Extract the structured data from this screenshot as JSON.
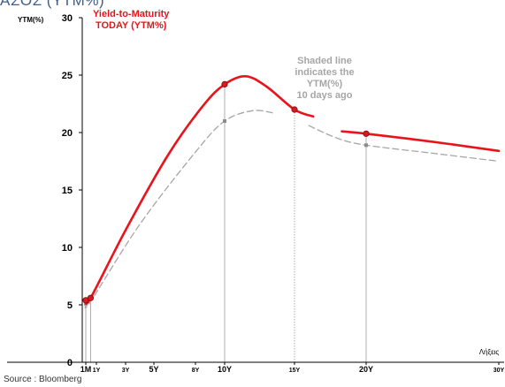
{
  "page_title": "ΑΣΟΣ (YTM%)",
  "source": "Source : Bloomberg",
  "legend": {
    "today_line1": "Yield-to-Maturity",
    "today_line2": "TODAY     (YTM%)"
  },
  "annotation": [
    "Shaded line",
    "indicates the",
    "YTM(%)",
    "10 days ago"
  ],
  "colors": {
    "today": "#e8141b",
    "ago": "#a6a6a6",
    "axis": "#000000",
    "drop": "#9a9a9a"
  },
  "chart_data": {
    "type": "line",
    "title": "",
    "ylabel": "YTM(%)",
    "xlabel": "Λήξεις",
    "ylim": [
      0,
      30
    ],
    "y_ticks": [
      "0",
      "5",
      "10",
      "15",
      "20",
      "25",
      "30"
    ],
    "x_ticks": [
      {
        "label": "1M",
        "t": 0.08,
        "bold": true
      },
      {
        "label": "1Y",
        "t": 1,
        "bold": false
      },
      {
        "label": "3Y",
        "t": 3,
        "bold": false
      },
      {
        "label": "5Y",
        "t": 5,
        "bold": true
      },
      {
        "label": "8Y",
        "t": 8,
        "bold": false
      },
      {
        "label": "10Y",
        "t": 10,
        "bold": true
      },
      {
        "label": "15Y",
        "t": 15,
        "bold": false
      },
      {
        "label": "20Y",
        "t": 20,
        "bold": true
      },
      {
        "label": "30Y",
        "t": 30,
        "bold": false
      }
    ],
    "grid": false,
    "series": [
      {
        "name": "Yield-to-Maturity TODAY (YTM%)",
        "role": "today",
        "style": "solid",
        "markers": [
          {
            "x": 0.08,
            "y": 5.4
          },
          {
            "x": 0.5,
            "y": 5.6
          },
          {
            "x": 10,
            "y": 24.2
          },
          {
            "x": 15,
            "y": 22.0
          },
          {
            "x": 20,
            "y": 19.9
          }
        ],
        "curve": [
          {
            "x": 0.08,
            "y": 5.4
          },
          {
            "x": 0.5,
            "y": 5.6
          },
          {
            "x": 3,
            "y": 11.5
          },
          {
            "x": 6,
            "y": 18.0
          },
          {
            "x": 8.5,
            "y": 22.3
          },
          {
            "x": 10,
            "y": 24.2
          },
          {
            "x": 11.5,
            "y": 24.9
          },
          {
            "x": 13,
            "y": 24.0
          },
          {
            "x": 15,
            "y": 22.0
          },
          {
            "x": 16.3,
            "y": 21.4
          }
        ],
        "curve2": [
          {
            "x": 18.3,
            "y": 20.1
          },
          {
            "x": 20,
            "y": 19.9
          },
          {
            "x": 25,
            "y": 19.2
          },
          {
            "x": 30,
            "y": 18.4
          }
        ]
      },
      {
        "name": "YTM(%) 10 days ago",
        "role": "ago",
        "style": "dashed",
        "markers": [
          {
            "x": 0.08,
            "y": 5.1
          },
          {
            "x": 10,
            "y": 21.0
          },
          {
            "x": 20,
            "y": 18.9
          }
        ],
        "curve": [
          {
            "x": 0.08,
            "y": 5.1
          },
          {
            "x": 0.5,
            "y": 5.3
          },
          {
            "x": 4,
            "y": 12.0
          },
          {
            "x": 8,
            "y": 18.3
          },
          {
            "x": 10,
            "y": 21.0
          },
          {
            "x": 12,
            "y": 21.9
          },
          {
            "x": 13.5,
            "y": 21.7
          }
        ],
        "curve2": [
          {
            "x": 16,
            "y": 20.6
          },
          {
            "x": 18,
            "y": 19.5
          },
          {
            "x": 20,
            "y": 18.9
          },
          {
            "x": 25,
            "y": 18.2
          },
          {
            "x": 30,
            "y": 17.5
          }
        ]
      }
    ],
    "drop_lines": [
      {
        "x": 0.08,
        "y": 5.4
      },
      {
        "x": 0.5,
        "y": 5.6
      },
      {
        "x": 10,
        "y": 24.2
      },
      {
        "x": 15,
        "y": 22.0
      },
      {
        "x": 20,
        "y": 19.9
      }
    ]
  }
}
